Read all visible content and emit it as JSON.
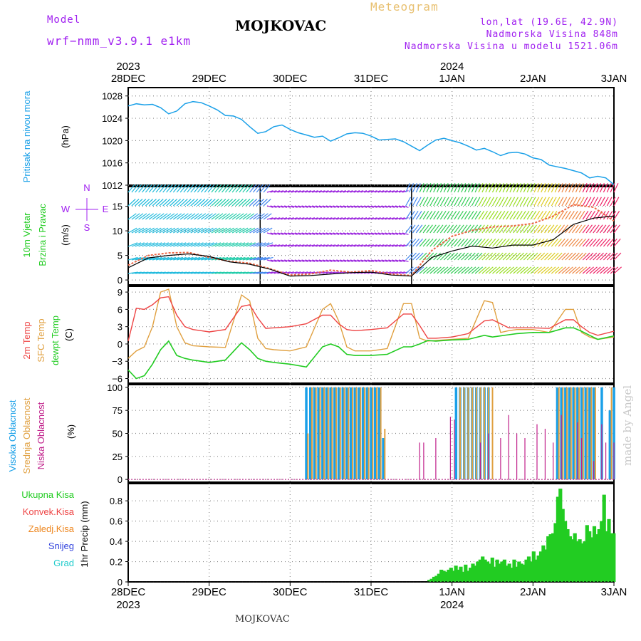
{
  "header": {
    "model_label": "Model",
    "model_name": "wrf−nmm_v3.9.1 e1km",
    "title": "MOJKOVAC",
    "meteogram": "Meteogram",
    "lonlat": "lon,lat (19.6E, 42.9N)",
    "altitude": "Nadmorska Visina 848m",
    "model_altitude": "Nadmorska Visina u modelu 1521.06m"
  },
  "footer": {
    "station": "MOJKOVAC",
    "credit": "made by Angel"
  },
  "colors": {
    "pressure": "#1aa0e8",
    "temp": "#ee4444",
    "sfc": "#e0a040",
    "dewpt": "#22cc22",
    "high_cloud": "#1aa0e8",
    "mid_cloud": "#e0a040",
    "low_cloud": "#c0208a",
    "total_rain": "#22cc22",
    "conv_rain": "#ee4444",
    "frz_rain": "#ee8822",
    "snow": "#3344dd",
    "hail": "#22cccc",
    "label_purple": "#a020f0"
  },
  "time_axis": {
    "dates": [
      "28DEC",
      "29DEC",
      "30DEC",
      "31DEC",
      "1JAN",
      "2JAN",
      "3JAN"
    ],
    "year_start": "2023",
    "year_mid": "2024"
  },
  "chart_data": [
    {
      "type": "line",
      "panel": "pressure",
      "ylabel": [
        "Pritisak na nivou mora",
        "(hPa)"
      ],
      "yticks": [
        "1012",
        "1016",
        "1020",
        "1024",
        "1028"
      ],
      "ylim": [
        1012,
        1029.5
      ],
      "x_unit": "days since 28DEC 00",
      "series": [
        {
          "name": "Pritisak na nivou mora",
          "x": [
            0,
            0.1,
            0.2,
            0.3,
            0.4,
            0.5,
            0.6,
            0.7,
            0.8,
            0.9,
            1.0,
            1.1,
            1.2,
            1.3,
            1.4,
            1.5,
            1.6,
            1.7,
            1.8,
            1.9,
            2.0,
            2.1,
            2.2,
            2.3,
            2.4,
            2.5,
            2.6,
            2.7,
            2.8,
            2.9,
            3.0,
            3.1,
            3.2,
            3.3,
            3.4,
            3.5,
            3.6,
            3.7,
            3.8,
            3.9,
            4.0,
            4.1,
            4.2,
            4.3,
            4.4,
            4.5,
            4.6,
            4.7,
            4.8,
            4.9,
            5.0,
            5.1,
            5.2,
            5.3,
            5.4,
            5.5,
            5.6,
            5.7,
            5.8,
            5.9,
            6.0
          ],
          "values": [
            1026.2,
            1026.6,
            1026.4,
            1026.5,
            1025.9,
            1024.8,
            1025.3,
            1026.6,
            1027.0,
            1026.8,
            1026.2,
            1025.5,
            1024.5,
            1024.4,
            1023.8,
            1022.5,
            1021.3,
            1021.6,
            1022.5,
            1022.8,
            1022.0,
            1021.4,
            1021.0,
            1020.6,
            1020.8,
            1019.9,
            1020.5,
            1021.2,
            1021.4,
            1021.3,
            1020.8,
            1020.1,
            1020.2,
            1020.3,
            1019.8,
            1019.0,
            1018.2,
            1019.2,
            1020.1,
            1020.4,
            1020.0,
            1019.6,
            1019.0,
            1018.3,
            1018.6,
            1018.0,
            1017.3,
            1017.8,
            1017.9,
            1017.6,
            1016.9,
            1016.6,
            1015.6,
            1015.3,
            1015.0,
            1014.6,
            1014.2,
            1013.3,
            1013.6,
            1013.3,
            1012.1
          ]
        }
      ]
    },
    {
      "type": "line",
      "panel": "wind",
      "ylabel": [
        "10m Vjetar",
        "Brzina i Pravac",
        "(m/s)"
      ],
      "compass": [
        "N",
        "E",
        "S",
        "W"
      ],
      "yticks": [
        "0",
        "5",
        "10",
        "15"
      ],
      "ylim": [
        -1,
        19
      ],
      "barbs": "wind direction arrows along each hour",
      "series": [
        {
          "name": "speed",
          "x": [
            0,
            0.25,
            0.5,
            0.75,
            1.0,
            1.25,
            1.5,
            1.75,
            2.0,
            2.25,
            2.5,
            2.75,
            3.0,
            3.25,
            3.5,
            3.75,
            4.0,
            4.25,
            4.5,
            4.75,
            5.0,
            5.25,
            5.5,
            5.75,
            6.0
          ],
          "values": [
            2.5,
            4.5,
            5.0,
            5.3,
            4.8,
            3.7,
            3.2,
            2.2,
            0.8,
            0.9,
            1.2,
            1.5,
            1.6,
            1.0,
            0.8,
            4.6,
            5.9,
            6.9,
            6.5,
            7.1,
            7.1,
            8.2,
            11.3,
            12.6,
            13.0
          ]
        },
        {
          "name": "gust",
          "x": [
            0,
            0.25,
            0.5,
            0.75,
            1.0,
            1.25,
            1.5,
            1.75,
            2.0,
            2.25,
            2.5,
            2.75,
            3.0,
            3.25,
            3.5,
            3.75,
            4.0,
            4.25,
            4.5,
            4.75,
            5.0,
            5.25,
            5.5,
            5.75,
            6.0
          ],
          "values": [
            3.0,
            5.0,
            5.5,
            5.6,
            4.6,
            3.8,
            3.4,
            2.3,
            1.0,
            1.2,
            2.0,
            1.6,
            1.9,
            1.2,
            0.9,
            6.0,
            8.9,
            10.1,
            10.8,
            11.0,
            11.5,
            13.0,
            15.3,
            14.8,
            12.0
          ]
        }
      ]
    },
    {
      "type": "line",
      "panel": "temperature",
      "ylabel": [
        "2m Temp",
        "SFC Temp",
        "dewpt Temp",
        "(C)"
      ],
      "yticks": [
        "−6",
        "−3",
        "0",
        "3",
        "6",
        "9"
      ],
      "ylim": [
        -6.8,
        10
      ],
      "series": [
        {
          "name": "2m Temp",
          "x": [
            0,
            0.1,
            0.2,
            0.3,
            0.4,
            0.5,
            0.6,
            0.7,
            0.8,
            0.9,
            1.0,
            1.2,
            1.4,
            1.5,
            1.6,
            1.7,
            1.8,
            2.0,
            2.2,
            2.4,
            2.5,
            2.6,
            2.7,
            2.8,
            3.0,
            3.2,
            3.4,
            3.5,
            3.6,
            3.7,
            3.8,
            4.0,
            4.2,
            4.4,
            4.5,
            4.6,
            4.7,
            4.8,
            5.0,
            5.2,
            5.4,
            5.5,
            5.6,
            5.7,
            5.8,
            6.0
          ],
          "values": [
            0.5,
            6.2,
            6.0,
            6.8,
            8.0,
            8.2,
            5.0,
            3.0,
            2.5,
            2.3,
            2.1,
            2.5,
            6.5,
            6.8,
            4.5,
            2.7,
            2.8,
            3.0,
            3.5,
            5.0,
            5.0,
            3.5,
            2.5,
            2.3,
            2.5,
            2.8,
            5.2,
            5.2,
            3.2,
            1.0,
            1.0,
            1.2,
            1.8,
            4.0,
            4.2,
            3.5,
            2.8,
            2.8,
            2.8,
            2.7,
            4.2,
            4.2,
            3.0,
            2.0,
            1.5,
            2.2
          ]
        },
        {
          "name": "SFC Temp",
          "x": [
            0,
            0.1,
            0.2,
            0.3,
            0.4,
            0.5,
            0.6,
            0.7,
            0.8,
            0.9,
            1.0,
            1.2,
            1.4,
            1.5,
            1.6,
            1.7,
            1.8,
            2.0,
            2.2,
            2.4,
            2.5,
            2.6,
            2.7,
            2.8,
            3.0,
            3.2,
            3.4,
            3.5,
            3.6,
            3.7,
            3.8,
            4.0,
            4.2,
            4.4,
            4.5,
            4.6,
            4.7,
            4.8,
            5.0,
            5.2,
            5.4,
            5.5,
            5.6,
            5.7,
            5.8,
            6.0
          ],
          "values": [
            -2.5,
            -1.2,
            -0.5,
            3.0,
            9.0,
            9.5,
            3.0,
            0.2,
            -0.3,
            -0.4,
            -0.5,
            -0.6,
            8.5,
            7.5,
            1.0,
            -0.8,
            -1.0,
            -1.2,
            -0.5,
            6.0,
            7.0,
            4.0,
            -0.5,
            -1.2,
            -1.2,
            -0.8,
            7.0,
            7.0,
            1.0,
            0.5,
            0.6,
            0.8,
            1.0,
            7.5,
            7.2,
            2.0,
            2.3,
            2.5,
            2.5,
            2.0,
            6.0,
            6.0,
            2.0,
            1.2,
            0.8,
            1.2
          ]
        },
        {
          "name": "dewpt Temp",
          "x": [
            0,
            0.1,
            0.2,
            0.3,
            0.4,
            0.5,
            0.6,
            0.7,
            0.8,
            0.9,
            1.0,
            1.2,
            1.4,
            1.5,
            1.6,
            1.7,
            1.8,
            2.0,
            2.2,
            2.4,
            2.5,
            2.6,
            2.7,
            2.8,
            3.0,
            3.2,
            3.4,
            3.5,
            3.6,
            3.7,
            3.8,
            4.0,
            4.2,
            4.4,
            4.5,
            4.6,
            4.7,
            4.8,
            5.0,
            5.2,
            5.4,
            5.5,
            5.6,
            5.7,
            5.8,
            6.0
          ],
          "values": [
            -4.5,
            -6.0,
            -5.5,
            -3.5,
            -1.0,
            0.5,
            -2.0,
            -2.5,
            -2.8,
            -3.0,
            -3.2,
            -2.8,
            0.2,
            -1.0,
            -2.5,
            -3.0,
            -3.2,
            -3.5,
            -4.0,
            -0.5,
            0.0,
            -0.5,
            -1.8,
            -2.0,
            -2.0,
            -1.8,
            -0.5,
            -0.5,
            0.0,
            0.6,
            0.5,
            0.7,
            0.8,
            1.5,
            1.2,
            1.4,
            1.6,
            1.8,
            2.0,
            2.0,
            2.8,
            2.8,
            2.2,
            1.5,
            0.8,
            1.4
          ]
        }
      ]
    },
    {
      "type": "bar",
      "panel": "clouds",
      "ylabel": [
        "Visoka Oblacnost",
        "Srednja Oblacnost",
        "Niska Oblacnost",
        "(%)"
      ],
      "yticks": [
        "0",
        "25",
        "50",
        "75",
        "100"
      ],
      "ylim": [
        -3,
        103
      ],
      "series": [
        {
          "name": "Visoka Oblacnost",
          "x": [
            2.2,
            2.25,
            2.3,
            2.35,
            2.4,
            2.45,
            2.5,
            2.55,
            2.6,
            2.65,
            2.7,
            2.75,
            2.8,
            2.85,
            2.9,
            2.95,
            3.0,
            3.05,
            3.1,
            3.15,
            4.05,
            4.1,
            4.15,
            4.2,
            4.25,
            4.3,
            4.35,
            4.4,
            4.45,
            5.3,
            5.35,
            5.4,
            5.45,
            5.5,
            5.55,
            5.6,
            5.65,
            5.7,
            5.75,
            5.85,
            5.95,
            6.0
          ],
          "values": [
            100,
            100,
            100,
            100,
            100,
            100,
            100,
            100,
            100,
            100,
            100,
            100,
            100,
            100,
            100,
            100,
            100,
            100,
            100,
            45,
            100,
            100,
            100,
            100,
            100,
            100,
            100,
            100,
            100,
            100,
            100,
            100,
            100,
            100,
            100,
            100,
            100,
            100,
            100,
            100,
            75,
            100
          ]
        },
        {
          "name": "Srednja Oblacnost",
          "x": [
            2.22,
            2.27,
            2.32,
            2.37,
            2.42,
            2.47,
            2.52,
            2.57,
            2.62,
            2.67,
            2.72,
            2.77,
            2.82,
            2.87,
            2.92,
            2.97,
            3.02,
            3.07,
            3.12,
            3.17,
            4.1,
            4.15,
            4.2,
            4.25,
            4.3,
            4.35,
            4.4,
            4.45,
            4.5,
            5.32,
            5.37,
            5.42,
            5.47,
            5.52,
            5.57,
            5.62,
            5.67,
            5.72,
            5.77,
            5.97
          ],
          "values": [
            50,
            100,
            100,
            100,
            100,
            100,
            100,
            100,
            100,
            100,
            100,
            100,
            100,
            100,
            100,
            100,
            100,
            100,
            100,
            55,
            100,
            100,
            100,
            100,
            100,
            100,
            100,
            100,
            100,
            100,
            100,
            100,
            100,
            100,
            100,
            100,
            100,
            100,
            100,
            100
          ]
        },
        {
          "name": "Niska Oblacnost",
          "x": [
            3.6,
            3.65,
            3.8,
            3.98,
            4.03,
            4.35,
            4.45,
            4.6,
            4.7,
            4.8,
            4.9,
            5.05,
            5.15,
            5.25,
            5.35,
            5.55,
            5.6,
            5.75,
            5.85,
            5.9,
            6.0
          ],
          "values": [
            40,
            40,
            45,
            68,
            65,
            40,
            50,
            45,
            70,
            50,
            45,
            60,
            55,
            40,
            70,
            62,
            45,
            20,
            60,
            40,
            40
          ]
        }
      ]
    },
    {
      "type": "bar",
      "panel": "precipitation",
      "ylabel": [
        "1hr Precip (mm)"
      ],
      "legend": [
        "Ukupna Kisa",
        "Konvek.Kisa",
        "Zaledj.Kisa",
        "Snijeg",
        "Grad"
      ],
      "yticks": [
        "0",
        "0.2",
        "0.4",
        "0.6",
        "0.8"
      ],
      "ylim": [
        0,
        0.97
      ],
      "series": [
        {
          "name": "Ukupna Kisa",
          "x": [
            3.72,
            3.75,
            3.78,
            3.81,
            3.84,
            3.87,
            3.9,
            3.93,
            3.96,
            3.99,
            4.02,
            4.05,
            4.08,
            4.11,
            4.14,
            4.17,
            4.2,
            4.23,
            4.26,
            4.29,
            4.32,
            4.35,
            4.38,
            4.41,
            4.44,
            4.47,
            4.5,
            4.53,
            4.56,
            4.59,
            4.62,
            4.65,
            4.68,
            4.71,
            4.74,
            4.77,
            4.8,
            4.83,
            4.86,
            4.89,
            4.92,
            4.95,
            4.98,
            5.01,
            5.04,
            5.07,
            5.1,
            5.13,
            5.16,
            5.19,
            5.22,
            5.25,
            5.28,
            5.31,
            5.34,
            5.37,
            5.4,
            5.43,
            5.46,
            5.49,
            5.52,
            5.55,
            5.58,
            5.61,
            5.64,
            5.67,
            5.7,
            5.73,
            5.76,
            5.79,
            5.82,
            5.85,
            5.88,
            5.91,
            5.94,
            5.97,
            6.0
          ],
          "values": [
            0.02,
            0.03,
            0.05,
            0.06,
            0.08,
            0.12,
            0.11,
            0.1,
            0.12,
            0.14,
            0.11,
            0.16,
            0.12,
            0.15,
            0.1,
            0.17,
            0.11,
            0.14,
            0.18,
            0.16,
            0.2,
            0.22,
            0.25,
            0.22,
            0.2,
            0.18,
            0.24,
            0.15,
            0.22,
            0.18,
            0.2,
            0.22,
            0.16,
            0.18,
            0.14,
            0.22,
            0.15,
            0.2,
            0.18,
            0.17,
            0.22,
            0.25,
            0.2,
            0.3,
            0.22,
            0.26,
            0.3,
            0.36,
            0.32,
            0.45,
            0.47,
            0.48,
            0.58,
            0.84,
            0.92,
            0.72,
            0.6,
            0.52,
            0.45,
            0.42,
            0.48,
            0.4,
            0.42,
            0.38,
            0.4,
            0.56,
            0.5,
            0.44,
            0.55,
            0.47,
            0.52,
            0.6,
            0.86,
            0.5,
            0.62,
            0.48,
            0.48
          ]
        }
      ]
    }
  ]
}
